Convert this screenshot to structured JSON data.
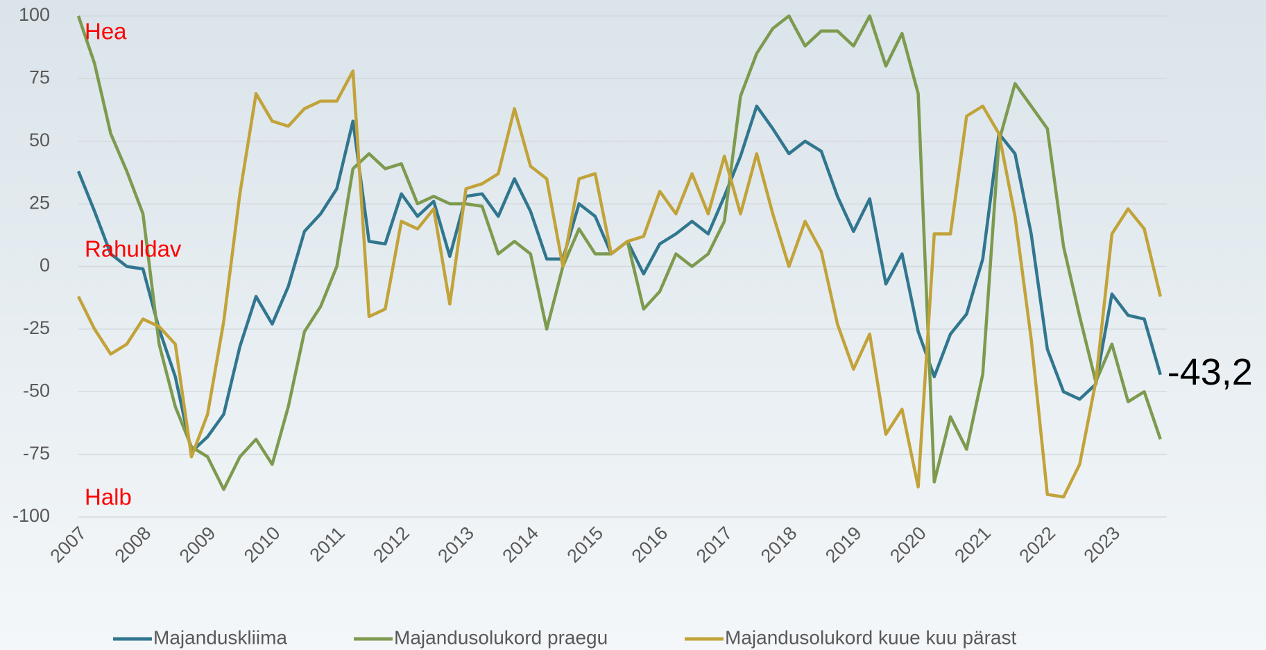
{
  "chart_data": {
    "type": "line",
    "categories": [
      "2007",
      null,
      null,
      null,
      "2008",
      null,
      null,
      null,
      "2009",
      null,
      null,
      null,
      "2010",
      null,
      null,
      null,
      "2011",
      null,
      null,
      null,
      "2012",
      null,
      null,
      null,
      "2013",
      null,
      null,
      null,
      "2014",
      null,
      null,
      null,
      "2015",
      null,
      null,
      null,
      "2016",
      null,
      null,
      null,
      "2017",
      null,
      null,
      null,
      "2018",
      null,
      null,
      null,
      "2019",
      null,
      null,
      null,
      "2020",
      null,
      null,
      null,
      "2021",
      null,
      null,
      null,
      "2022",
      null,
      null,
      null,
      "2023",
      null,
      null,
      null
    ],
    "series": [
      {
        "name": "Majanduskliima",
        "color": "#31768f",
        "values": [
          38,
          22,
          5,
          0,
          -1,
          -25,
          -44,
          -74,
          -68,
          -59,
          -32,
          -12,
          -23,
          -8,
          14,
          21,
          31,
          58,
          10,
          9,
          29,
          20,
          26,
          4,
          28,
          29,
          20,
          35,
          22,
          3,
          3,
          25,
          20,
          5,
          10,
          -3,
          9,
          13,
          18,
          13,
          28,
          44,
          64,
          55,
          45,
          50,
          46,
          28,
          14,
          27,
          -7,
          5,
          -26,
          -44,
          -27,
          -19,
          3,
          53,
          45,
          13,
          -33,
          -50,
          -53,
          -47,
          -11,
          -19.5,
          -21,
          -43.2
        ],
        "value_labels": [
          null,
          null,
          null,
          null,
          null,
          null,
          null,
          null,
          null,
          null,
          null,
          null,
          null,
          null,
          null,
          null,
          null,
          null,
          null,
          null,
          null,
          null,
          null,
          null,
          null,
          null,
          null,
          null,
          null,
          null,
          null,
          null,
          null,
          null,
          null,
          null,
          null,
          null,
          null,
          null,
          null,
          null,
          null,
          null,
          null,
          null,
          null,
          null,
          null,
          null,
          null,
          null,
          null,
          null,
          null,
          null,
          null,
          null,
          null,
          null,
          null,
          null,
          null,
          null,
          null,
          null,
          null,
          "-43,2"
        ]
      },
      {
        "name": "Majandusolukord praegu",
        "color": "#7d9a4f",
        "values": [
          100,
          81,
          53,
          38,
          21,
          -31,
          -56,
          -72,
          -76,
          -89,
          -76,
          -69,
          -79,
          -56,
          -26,
          -16,
          0,
          39,
          45,
          39,
          41,
          25,
          28,
          25,
          25,
          24,
          5,
          10,
          5,
          -25,
          0,
          15,
          5,
          5,
          10,
          -17,
          -10,
          5,
          0,
          5,
          18,
          68,
          85,
          95,
          100,
          88,
          94,
          94,
          88,
          100,
          80,
          93,
          69,
          -86,
          -60,
          -73,
          -43,
          50,
          73,
          64,
          55,
          8,
          -20,
          -46,
          -31,
          -54,
          -50,
          -69
        ]
      },
      {
        "name": "Majandusolukord kuue kuu pärast",
        "color": "#c2a33a",
        "values": [
          -12,
          -25,
          -35,
          -31,
          -21,
          -24,
          -31,
          -76,
          -59,
          -22,
          29,
          69,
          58,
          56,
          63,
          66,
          66,
          78,
          -20,
          -17,
          18,
          15,
          23,
          -15,
          31,
          33,
          37,
          63,
          40,
          35,
          0,
          35,
          37,
          5,
          10,
          12,
          30,
          21,
          37,
          21,
          44,
          21,
          45,
          21,
          0,
          18,
          6,
          -23,
          -41,
          -27,
          -67,
          -57,
          -88,
          13,
          13,
          60,
          64,
          53,
          20,
          -29,
          -91,
          -92,
          -79,
          -46,
          13,
          23,
          15,
          -12
        ]
      }
    ],
    "annotations": [
      "Hea",
      "Rahuldav",
      "Halb"
    ],
    "ylim": [
      -100,
      100
    ],
    "yticks": [
      -100,
      -75,
      -50,
      -25,
      0,
      25,
      50,
      75,
      100
    ],
    "grid": true,
    "legend": "bottom"
  }
}
